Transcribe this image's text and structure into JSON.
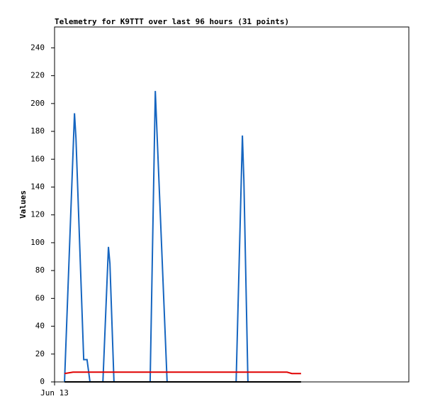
{
  "chart_data": {
    "type": "line",
    "title": "Telemetry for K9TTT over last 96 hours (31 points)",
    "ylabel": "Values",
    "xlim": [
      0,
      96
    ],
    "xticks": [
      {
        "value": 0,
        "label": "Jun 13"
      }
    ],
    "ylim": [
      0,
      255
    ],
    "yticks": [
      0,
      20,
      40,
      60,
      80,
      100,
      120,
      140,
      160,
      180,
      200,
      220,
      240
    ],
    "grid": false,
    "series": [
      {
        "color": "#1565c0",
        "x": [
          2.7,
          5.4,
          5.8,
          7.9,
          8.8,
          9.6,
          13.1,
          14.6,
          15.0,
          16.1,
          25.9,
          27.3,
          30.5,
          49.2,
          50.9,
          51.3,
          52.4
        ],
        "values": [
          0,
          193,
          175,
          16,
          16,
          0,
          0,
          97,
          85,
          0,
          0,
          209,
          0,
          0,
          177,
          145,
          0
        ]
      },
      {
        "color": "#e00000",
        "x": [
          2.7,
          5.0,
          63.0,
          64.3,
          66.8
        ],
        "values": [
          6,
          7,
          7,
          6,
          6
        ]
      },
      {
        "color": "#000000",
        "x": [
          2.7,
          66.8
        ],
        "values": [
          0,
          0
        ]
      }
    ]
  }
}
